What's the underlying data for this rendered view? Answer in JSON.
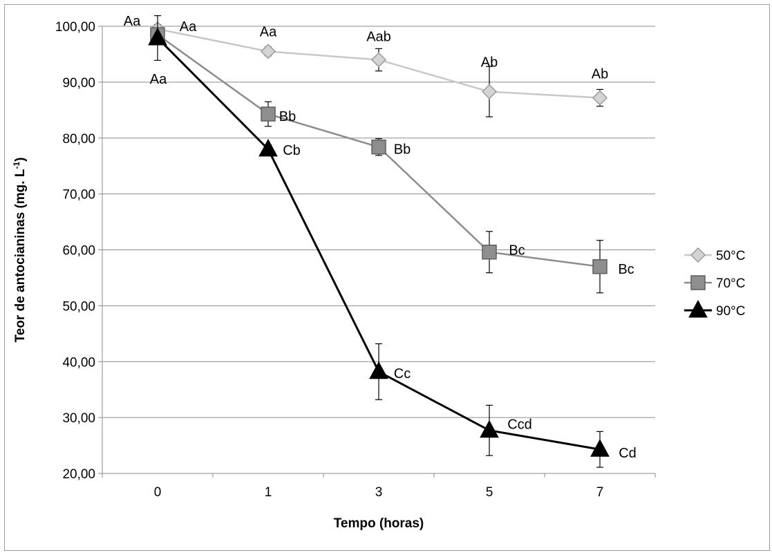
{
  "chart_data": {
    "type": "line",
    "title": "",
    "xlabel": "Tempo (horas)",
    "ylabel_main": "Teor de antocianinas  (mg.  L",
    "ylabel_sup": "-1",
    "ylabel_close": ")",
    "categories": [
      "0",
      "1",
      "3",
      "5",
      "7"
    ],
    "ylim": [
      20,
      100
    ],
    "yticks": [
      20,
      30,
      40,
      50,
      60,
      70,
      80,
      90,
      100
    ],
    "ytick_labels": [
      "20,00",
      "30,00",
      "40,00",
      "50,00",
      "60,00",
      "70,00",
      "80,00",
      "90,00",
      "100,00"
    ],
    "grid": true,
    "legend_position": "right",
    "series": [
      {
        "name": "50°C",
        "color": "#c8c8c8",
        "marker": "diamond",
        "values": [
          99.5,
          95.5,
          94.0,
          88.3,
          87.2
        ],
        "errors": [
          0.8,
          0.8,
          2.0,
          4.5,
          1.5
        ],
        "labels": [
          "Aa",
          "Aa",
          "Aab",
          "Ab",
          "Ab"
        ]
      },
      {
        "name": "70°C",
        "color": "#8c8c8c",
        "marker": "square",
        "values": [
          98.5,
          84.3,
          78.4,
          59.6,
          57.0
        ],
        "errors": [
          1.0,
          2.2,
          1.5,
          3.7,
          4.7
        ],
        "labels": [
          "Aa",
          "Bb",
          "Bb",
          "Bc",
          "Bc"
        ]
      },
      {
        "name": "90°C",
        "color": "#000000",
        "marker": "triangle",
        "values": [
          97.9,
          78.0,
          38.2,
          27.7,
          24.3
        ],
        "errors": [
          4.0,
          0.8,
          5.0,
          4.5,
          3.2
        ],
        "labels": [
          "Aa",
          "Cb",
          "Cc",
          "Ccd",
          "Cd"
        ]
      }
    ]
  }
}
